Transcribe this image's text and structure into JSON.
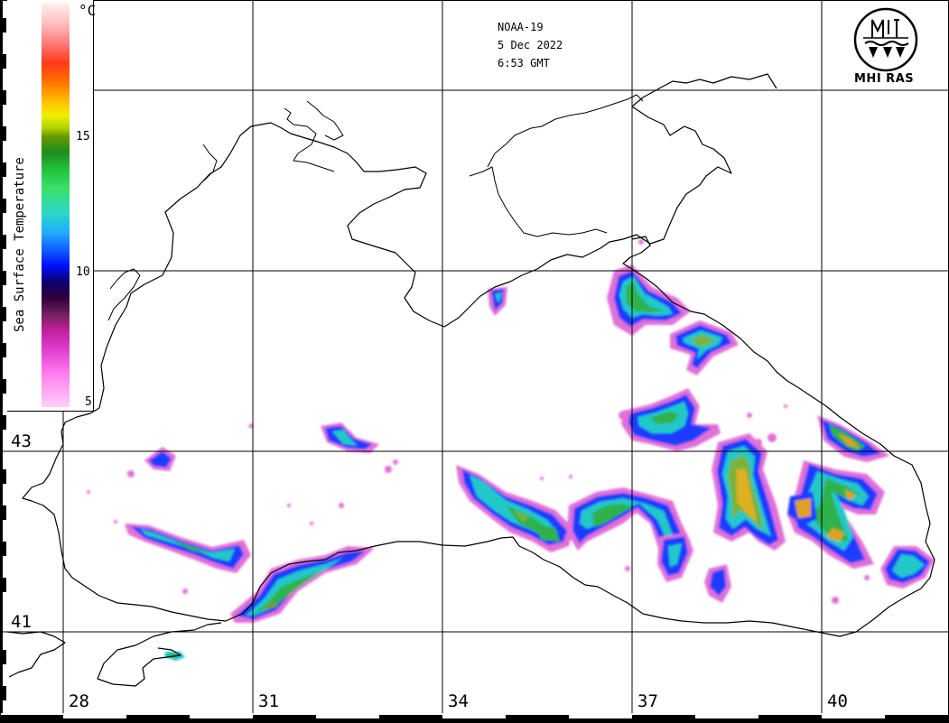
{
  "satellite": {
    "name": "NOAA-19",
    "date": "5 Dec 2022",
    "time": "6:53 GMT"
  },
  "organization": "MHI RAS",
  "legend": {
    "unit": "°C",
    "title": "Sea Surface Temperature",
    "ticks": [
      "15",
      "10",
      "5"
    ]
  },
  "longitudes": [
    "28",
    "31",
    "34",
    "37",
    "40"
  ],
  "latitudes": [
    "43",
    "41"
  ]
}
